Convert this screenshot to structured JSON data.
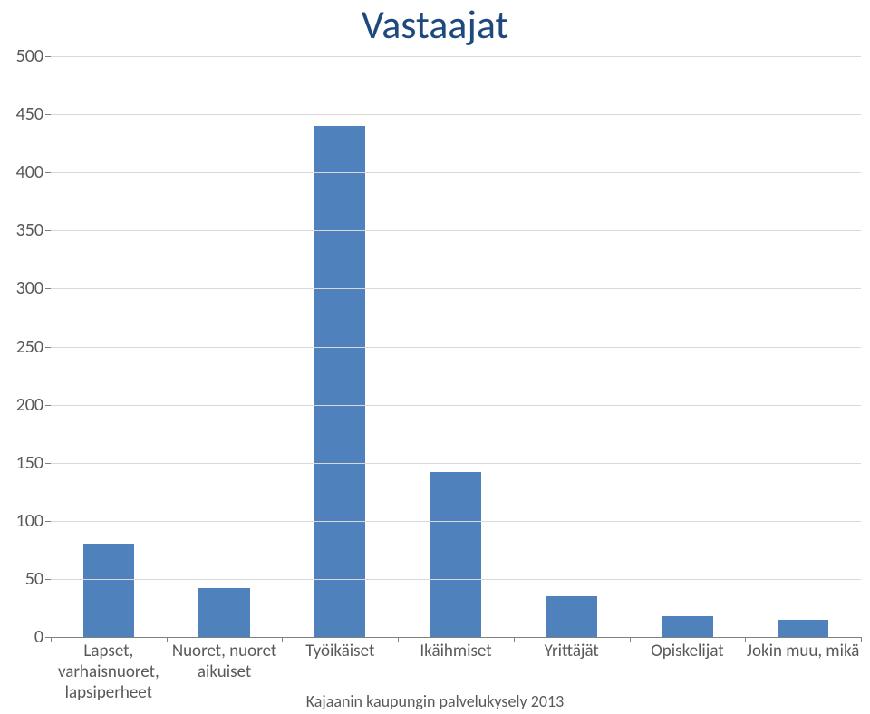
{
  "chart": {
    "type": "bar",
    "title": "Vastaajat",
    "title_color": "#1f497d",
    "title_fontsize": 44,
    "background_color": "#ffffff",
    "grid_color": "#d9d9d9",
    "axis_color": "#808080",
    "tick_label_color": "#595959",
    "tick_fontsize": 20,
    "xlabel_fontsize": 19,
    "ylim_min": 0,
    "ylim_max": 500,
    "ytick_step": 50,
    "yticks": [
      0,
      50,
      100,
      150,
      200,
      250,
      300,
      350,
      400,
      450,
      500
    ],
    "categories": [
      "Lapset,\nvarhaisnuoret,\nlapsiperheet",
      "Nuoret, nuoret\naikuiset",
      "Työikäiset",
      "Ikäihmiset",
      "Yrittäjät",
      "Opiskelijat",
      "Jokin muu, mikä"
    ],
    "values": [
      80,
      42,
      440,
      142,
      35,
      18,
      15
    ],
    "bar_color": "#4f81bd",
    "bar_width": 0.44,
    "footer": "Kajaanin kaupungin palvelukysely 2013",
    "footer_color": "#595959",
    "footer_fontsize": 18
  }
}
